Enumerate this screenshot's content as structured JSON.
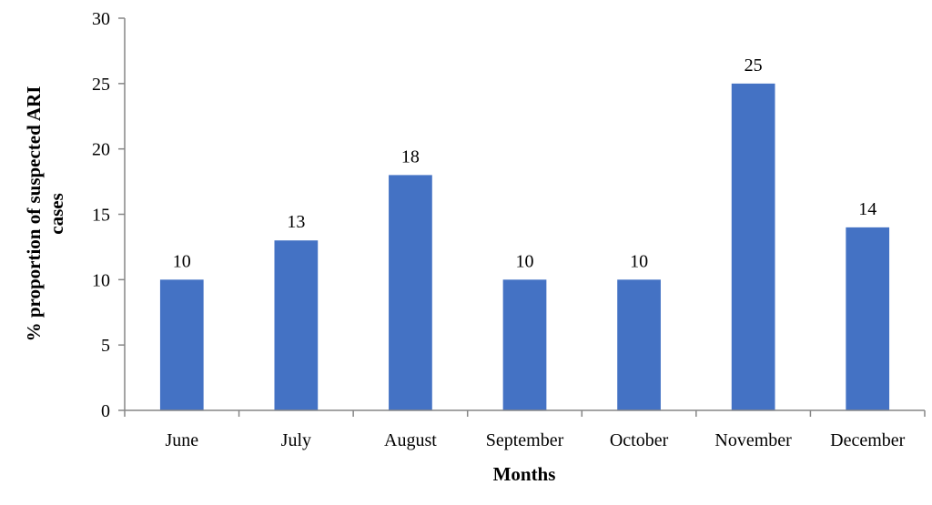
{
  "chart_data": {
    "type": "bar",
    "categories": [
      "June",
      "July",
      "August",
      "September",
      "October",
      "November",
      "December"
    ],
    "values": [
      10,
      13,
      18,
      10,
      10,
      25,
      14
    ],
    "data_labels": [
      "10",
      "13",
      "18",
      "10",
      "10",
      "25",
      "14"
    ],
    "title": "",
    "xlabel": "Months",
    "ylabel_lines": [
      "% proportion  of suspected  ARI",
      "cases"
    ],
    "ylim": [
      0,
      30
    ],
    "y_ticks": [
      0,
      5,
      10,
      15,
      20,
      25,
      30
    ],
    "grid": false,
    "legend": "none",
    "bar_color": "#4472C4",
    "axis_color": "#868686"
  }
}
